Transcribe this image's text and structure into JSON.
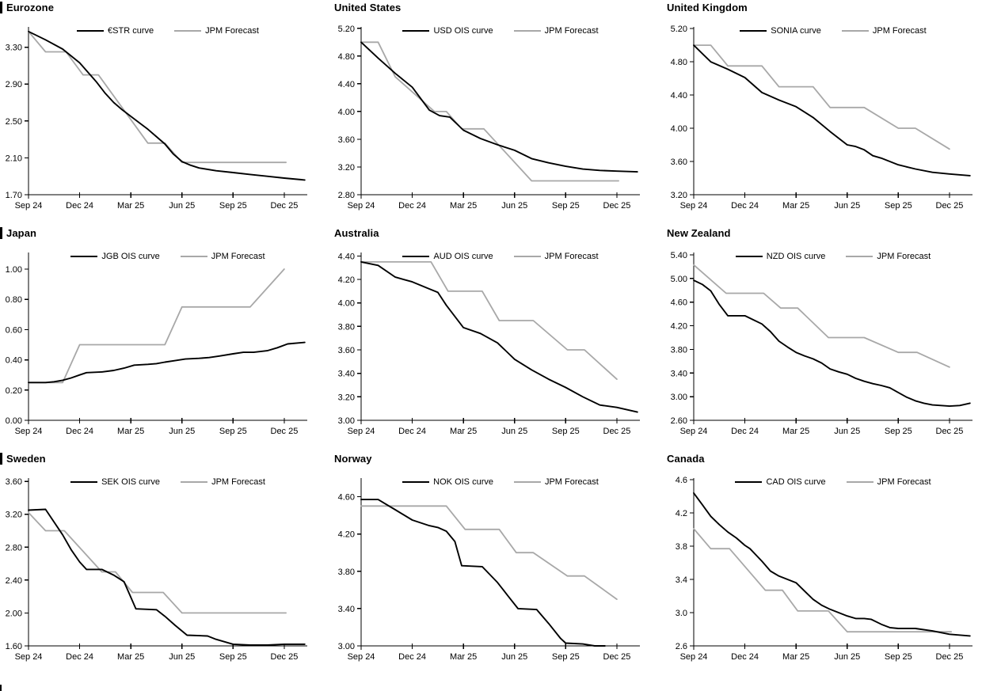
{
  "colors": {
    "curve": "#000000",
    "forecast": "#a8a8a8",
    "axis": "#000000",
    "text": "#000000",
    "background": "#ffffff"
  },
  "x_axis": {
    "tick_months": [
      0,
      3,
      6,
      9,
      12,
      15
    ],
    "tick_labels": [
      "Sep 24",
      "Dec 24",
      "Mar 25",
      "Jun 25",
      "Sep 25",
      "Dec 25"
    ],
    "domain_end": 16.35
  },
  "chart_data": [
    {
      "id": "eurozone",
      "title": "Eurozone",
      "type": "line",
      "left_bar": true,
      "ylim": [
        1.7,
        3.52
      ],
      "y_ticks": [
        1.7,
        2.1,
        2.5,
        2.9,
        3.3
      ],
      "y_tick_labels": [
        "1.70",
        "2.10",
        "2.50",
        "2.90",
        "3.30"
      ],
      "legend_position": "top-center",
      "grid": false,
      "series": [
        {
          "id": "estr-curve",
          "name": "€STR curve",
          "color": "#000000",
          "x": [
            0,
            1,
            2,
            3,
            4,
            4.5,
            5,
            5.5,
            6,
            6.5,
            7,
            7.5,
            8,
            8.5,
            9,
            9.5,
            10,
            11,
            12,
            13,
            14,
            15,
            16.2
          ],
          "y": [
            3.47,
            3.38,
            3.28,
            3.13,
            2.92,
            2.8,
            2.7,
            2.62,
            2.55,
            2.48,
            2.41,
            2.33,
            2.25,
            2.14,
            2.06,
            2.02,
            1.99,
            1.96,
            1.94,
            1.92,
            1.9,
            1.88,
            1.86
          ]
        },
        {
          "id": "jpm-forecast",
          "name": "JPM Forecast",
          "color": "#a8a8a8",
          "x": [
            0,
            1,
            2.2,
            3.2,
            4.1,
            7,
            8,
            9,
            15.1
          ],
          "y": [
            3.47,
            3.25,
            3.25,
            3.0,
            3.0,
            2.26,
            2.26,
            2.05,
            2.05
          ]
        }
      ]
    },
    {
      "id": "united-states",
      "title": "United States",
      "type": "line",
      "left_bar": false,
      "ylim": [
        2.8,
        5.22
      ],
      "y_ticks": [
        2.8,
        3.2,
        3.6,
        4.0,
        4.4,
        4.8,
        5.2
      ],
      "y_tick_labels": [
        "2.80",
        "3.20",
        "3.60",
        "4.00",
        "4.40",
        "4.80",
        "5.20"
      ],
      "legend_position": "top-center",
      "grid": false,
      "series": [
        {
          "id": "usd-ois-curve",
          "name": "USD OIS curve",
          "color": "#000000",
          "x": [
            0,
            1,
            2,
            3,
            4,
            4.6,
            5.2,
            6,
            7,
            8,
            9,
            10,
            11,
            12,
            13,
            14,
            15,
            16.2
          ],
          "y": [
            5.0,
            4.77,
            4.55,
            4.35,
            4.02,
            3.94,
            3.92,
            3.73,
            3.61,
            3.52,
            3.44,
            3.32,
            3.26,
            3.21,
            3.17,
            3.15,
            3.14,
            3.13
          ]
        },
        {
          "id": "jpm-forecast",
          "name": "JPM Forecast",
          "color": "#a8a8a8",
          "x": [
            0,
            1,
            2,
            4.3,
            5,
            5.9,
            7.2,
            10,
            15.1
          ],
          "y": [
            5.0,
            5.0,
            4.5,
            4.0,
            4.0,
            3.75,
            3.75,
            3.0,
            3.0
          ]
        }
      ]
    },
    {
      "id": "united-kingdom",
      "title": "United Kingdom",
      "type": "line",
      "left_bar": false,
      "ylim": [
        3.2,
        5.22
      ],
      "y_ticks": [
        3.2,
        3.6,
        4.0,
        4.4,
        4.8,
        5.2
      ],
      "y_tick_labels": [
        "3.20",
        "3.60",
        "4.00",
        "4.40",
        "4.80",
        "5.20"
      ],
      "legend_position": "top-center",
      "grid": false,
      "series": [
        {
          "id": "sonia-curve",
          "name": "SONIA curve",
          "color": "#000000",
          "x": [
            0,
            1,
            2,
            3,
            4,
            5,
            6,
            7,
            8,
            9,
            9.5,
            10,
            10.5,
            11,
            12,
            13,
            14,
            15,
            16.2
          ],
          "y": [
            5.0,
            4.8,
            4.71,
            4.61,
            4.43,
            4.34,
            4.26,
            4.13,
            3.96,
            3.8,
            3.78,
            3.74,
            3.67,
            3.64,
            3.56,
            3.51,
            3.47,
            3.45,
            3.43
          ]
        },
        {
          "id": "jpm-forecast",
          "name": "JPM Forecast",
          "color": "#a8a8a8",
          "x": [
            0,
            1,
            2,
            4,
            5,
            7,
            8,
            10,
            12,
            13,
            15
          ],
          "y": [
            5.0,
            5.0,
            4.75,
            4.75,
            4.5,
            4.5,
            4.25,
            4.25,
            4.0,
            4.0,
            3.75
          ]
        }
      ]
    },
    {
      "id": "japan",
      "title": "Japan",
      "type": "line",
      "left_bar": true,
      "ylim": [
        0.0,
        1.11
      ],
      "y_ticks": [
        0.0,
        0.2,
        0.4,
        0.6,
        0.8,
        1.0
      ],
      "y_tick_labels": [
        "0.00",
        "0.20",
        "0.40",
        "0.60",
        "0.80",
        "1.00"
      ],
      "legend_position": "top-center",
      "grid": false,
      "series": [
        {
          "id": "jgb-ois-curve",
          "name": "JGB OIS curve",
          "color": "#000000",
          "x": [
            0,
            1,
            1.5,
            2,
            2.5,
            3,
            3.4,
            4.3,
            5,
            5.6,
            6.2,
            7,
            7.5,
            8,
            8.6,
            9.2,
            10,
            10.6,
            11.2,
            12,
            12.6,
            13.2,
            14,
            14.6,
            15.2,
            16.2
          ],
          "y": [
            0.25,
            0.25,
            0.255,
            0.265,
            0.28,
            0.3,
            0.315,
            0.32,
            0.33,
            0.345,
            0.365,
            0.37,
            0.375,
            0.385,
            0.395,
            0.405,
            0.41,
            0.415,
            0.425,
            0.44,
            0.45,
            0.45,
            0.46,
            0.48,
            0.505,
            0.515
          ]
        },
        {
          "id": "jpm-forecast",
          "name": "JPM Forecast",
          "color": "#a8a8a8",
          "x": [
            0,
            2,
            3,
            8,
            9,
            13,
            15
          ],
          "y": [
            0.25,
            0.25,
            0.5,
            0.5,
            0.75,
            0.75,
            1.0
          ]
        }
      ]
    },
    {
      "id": "australia",
      "title": "Australia",
      "type": "line",
      "left_bar": false,
      "ylim": [
        3.0,
        4.43
      ],
      "y_ticks": [
        3.0,
        3.2,
        3.4,
        3.6,
        3.8,
        4.0,
        4.2,
        4.4
      ],
      "y_tick_labels": [
        "3.00",
        "3.20",
        "3.40",
        "3.60",
        "3.80",
        "4.00",
        "4.20",
        "4.40"
      ],
      "legend_position": "top-center",
      "grid": false,
      "series": [
        {
          "id": "aud-ois-curve",
          "name": "AUD OIS curve",
          "color": "#000000",
          "x": [
            0,
            1,
            2,
            3,
            4,
            4.5,
            5,
            6,
            7,
            8,
            8.5,
            9,
            10,
            11,
            12,
            13,
            14,
            15,
            16.2
          ],
          "y": [
            4.35,
            4.32,
            4.22,
            4.18,
            4.12,
            4.09,
            3.98,
            3.79,
            3.74,
            3.66,
            3.59,
            3.52,
            3.43,
            3.35,
            3.28,
            3.2,
            3.13,
            3.11,
            3.07
          ]
        },
        {
          "id": "jpm-forecast",
          "name": "JPM Forecast",
          "color": "#a8a8a8",
          "x": [
            0,
            4.1,
            5.1,
            7.1,
            8.1,
            10.1,
            12.1,
            13.1,
            15
          ],
          "y": [
            4.35,
            4.35,
            4.1,
            4.1,
            3.85,
            3.85,
            3.6,
            3.6,
            3.35
          ]
        }
      ]
    },
    {
      "id": "new-zealand",
      "title": "New Zealand",
      "type": "line",
      "left_bar": false,
      "ylim": [
        2.6,
        5.44
      ],
      "y_ticks": [
        2.6,
        3.0,
        3.4,
        3.8,
        4.2,
        4.6,
        5.0,
        5.4
      ],
      "y_tick_labels": [
        "2.60",
        "3.00",
        "3.40",
        "3.80",
        "4.20",
        "4.60",
        "5.00",
        "5.40"
      ],
      "legend_position": "top-center",
      "grid": false,
      "series": [
        {
          "id": "nzd-ois-curve",
          "name": "NZD OIS curve",
          "color": "#000000",
          "x": [
            0,
            0.5,
            1,
            1.5,
            2,
            3,
            3.5,
            4,
            4.5,
            5,
            5.5,
            6,
            6.5,
            7,
            7.5,
            8,
            8.5,
            9,
            9.5,
            10,
            10.5,
            11,
            11.5,
            12,
            12.5,
            13,
            13.5,
            14,
            15,
            15.6,
            16.2
          ],
          "y": [
            4.97,
            4.9,
            4.79,
            4.56,
            4.37,
            4.37,
            4.3,
            4.23,
            4.1,
            3.94,
            3.84,
            3.75,
            3.69,
            3.64,
            3.57,
            3.47,
            3.42,
            3.38,
            3.31,
            3.26,
            3.22,
            3.19,
            3.15,
            3.07,
            2.99,
            2.93,
            2.89,
            2.86,
            2.84,
            2.85,
            2.89
          ]
        },
        {
          "id": "jpm-forecast",
          "name": "JPM Forecast",
          "color": "#a8a8a8",
          "x": [
            0,
            1.9,
            4.1,
            5.1,
            6.1,
            7.9,
            10,
            12,
            13.1,
            15
          ],
          "y": [
            5.23,
            4.75,
            4.75,
            4.5,
            4.5,
            4.0,
            4.0,
            3.75,
            3.75,
            3.5
          ]
        }
      ]
    },
    {
      "id": "sweden",
      "title": "Sweden",
      "type": "line",
      "left_bar": true,
      "ylim": [
        1.6,
        3.64
      ],
      "y_ticks": [
        1.6,
        2.0,
        2.4,
        2.8,
        3.2,
        3.6
      ],
      "y_tick_labels": [
        "1.60",
        "2.00",
        "2.40",
        "2.80",
        "3.20",
        "3.60"
      ],
      "legend_position": "top-center",
      "grid": false,
      "series": [
        {
          "id": "sek-ois-curve",
          "name": "SEK OIS curve",
          "color": "#000000",
          "x": [
            0,
            1,
            2,
            2.5,
            3,
            3.4,
            4.3,
            5,
            5.6,
            6.3,
            7.5,
            8,
            8.6,
            9.3,
            10.5,
            11,
            12,
            13,
            14,
            15,
            16.2
          ],
          "y": [
            3.25,
            3.26,
            2.95,
            2.77,
            2.62,
            2.53,
            2.53,
            2.46,
            2.38,
            2.05,
            2.04,
            1.96,
            1.85,
            1.73,
            1.72,
            1.68,
            1.62,
            1.61,
            1.61,
            1.62,
            1.62
          ]
        },
        {
          "id": "jpm-forecast",
          "name": "JPM Forecast",
          "color": "#a8a8a8",
          "x": [
            0,
            1,
            2.1,
            4.3,
            5.1,
            6.1,
            7.9,
            9,
            15.1
          ],
          "y": [
            3.22,
            3.0,
            3.0,
            2.5,
            2.5,
            2.25,
            2.25,
            2.0,
            2.0
          ]
        }
      ]
    },
    {
      "id": "norway",
      "title": "Norway",
      "type": "line",
      "left_bar": false,
      "ylim": [
        3.0,
        4.8
      ],
      "y_ticks": [
        3.0,
        3.4,
        3.8,
        4.2,
        4.6
      ],
      "y_tick_labels": [
        "3.00",
        "3.40",
        "3.80",
        "4.20",
        "4.60"
      ],
      "legend_position": "top-center",
      "grid": false,
      "series": [
        {
          "id": "nok-ois-curve",
          "name": "NOK OIS curve",
          "color": "#000000",
          "x": [
            0,
            1,
            2,
            3,
            4,
            4.5,
            5,
            5.5,
            5.9,
            7.1,
            8,
            8.6,
            9.2,
            10.3,
            11,
            11.7,
            12,
            13,
            13.7,
            14.3
          ],
          "y": [
            4.57,
            4.57,
            4.46,
            4.35,
            4.29,
            4.27,
            4.23,
            4.12,
            3.86,
            3.85,
            3.68,
            3.54,
            3.4,
            3.39,
            3.24,
            3.08,
            3.03,
            3.02,
            3.0,
            3.0
          ]
        },
        {
          "id": "jpm-forecast",
          "name": "JPM Forecast",
          "color": "#a8a8a8",
          "x": [
            0,
            5,
            6.1,
            8.1,
            9.1,
            10.1,
            12.1,
            13.1,
            15
          ],
          "y": [
            4.5,
            4.5,
            4.25,
            4.25,
            4.0,
            4.0,
            3.75,
            3.75,
            3.5
          ]
        }
      ]
    },
    {
      "id": "canada",
      "title": "Canada",
      "type": "line",
      "left_bar": false,
      "ylim": [
        2.6,
        4.62
      ],
      "y_ticks": [
        2.6,
        3.0,
        3.4,
        3.8,
        4.2,
        4.6
      ],
      "y_tick_labels": [
        "2.6",
        "3.0",
        "3.4",
        "3.8",
        "4.2",
        "4.6"
      ],
      "legend_position": "top-center",
      "grid": false,
      "series": [
        {
          "id": "cad-ois-curve",
          "name": "CAD OIS curve",
          "color": "#000000",
          "x": [
            0,
            0.5,
            1,
            1.5,
            2,
            2.5,
            3,
            3.3,
            4,
            4.5,
            5,
            5.5,
            6,
            6.5,
            7,
            7.5,
            8,
            8.5,
            9,
            9.5,
            10,
            10.4,
            11,
            11.5,
            12,
            13,
            14,
            15,
            16.2
          ],
          "y": [
            4.44,
            4.3,
            4.16,
            4.06,
            3.97,
            3.9,
            3.81,
            3.77,
            3.62,
            3.5,
            3.44,
            3.4,
            3.36,
            3.26,
            3.16,
            3.09,
            3.04,
            3.0,
            2.96,
            2.93,
            2.93,
            2.92,
            2.86,
            2.82,
            2.81,
            2.81,
            2.78,
            2.74,
            2.72
          ]
        },
        {
          "id": "jpm-forecast",
          "name": "JPM Forecast",
          "color": "#a8a8a8",
          "x": [
            0,
            1,
            2.1,
            4.2,
            5.2,
            6.1,
            7.9,
            9,
            15.1
          ],
          "y": [
            4.01,
            3.77,
            3.77,
            3.27,
            3.27,
            3.02,
            3.02,
            2.77,
            2.77
          ]
        }
      ]
    }
  ]
}
